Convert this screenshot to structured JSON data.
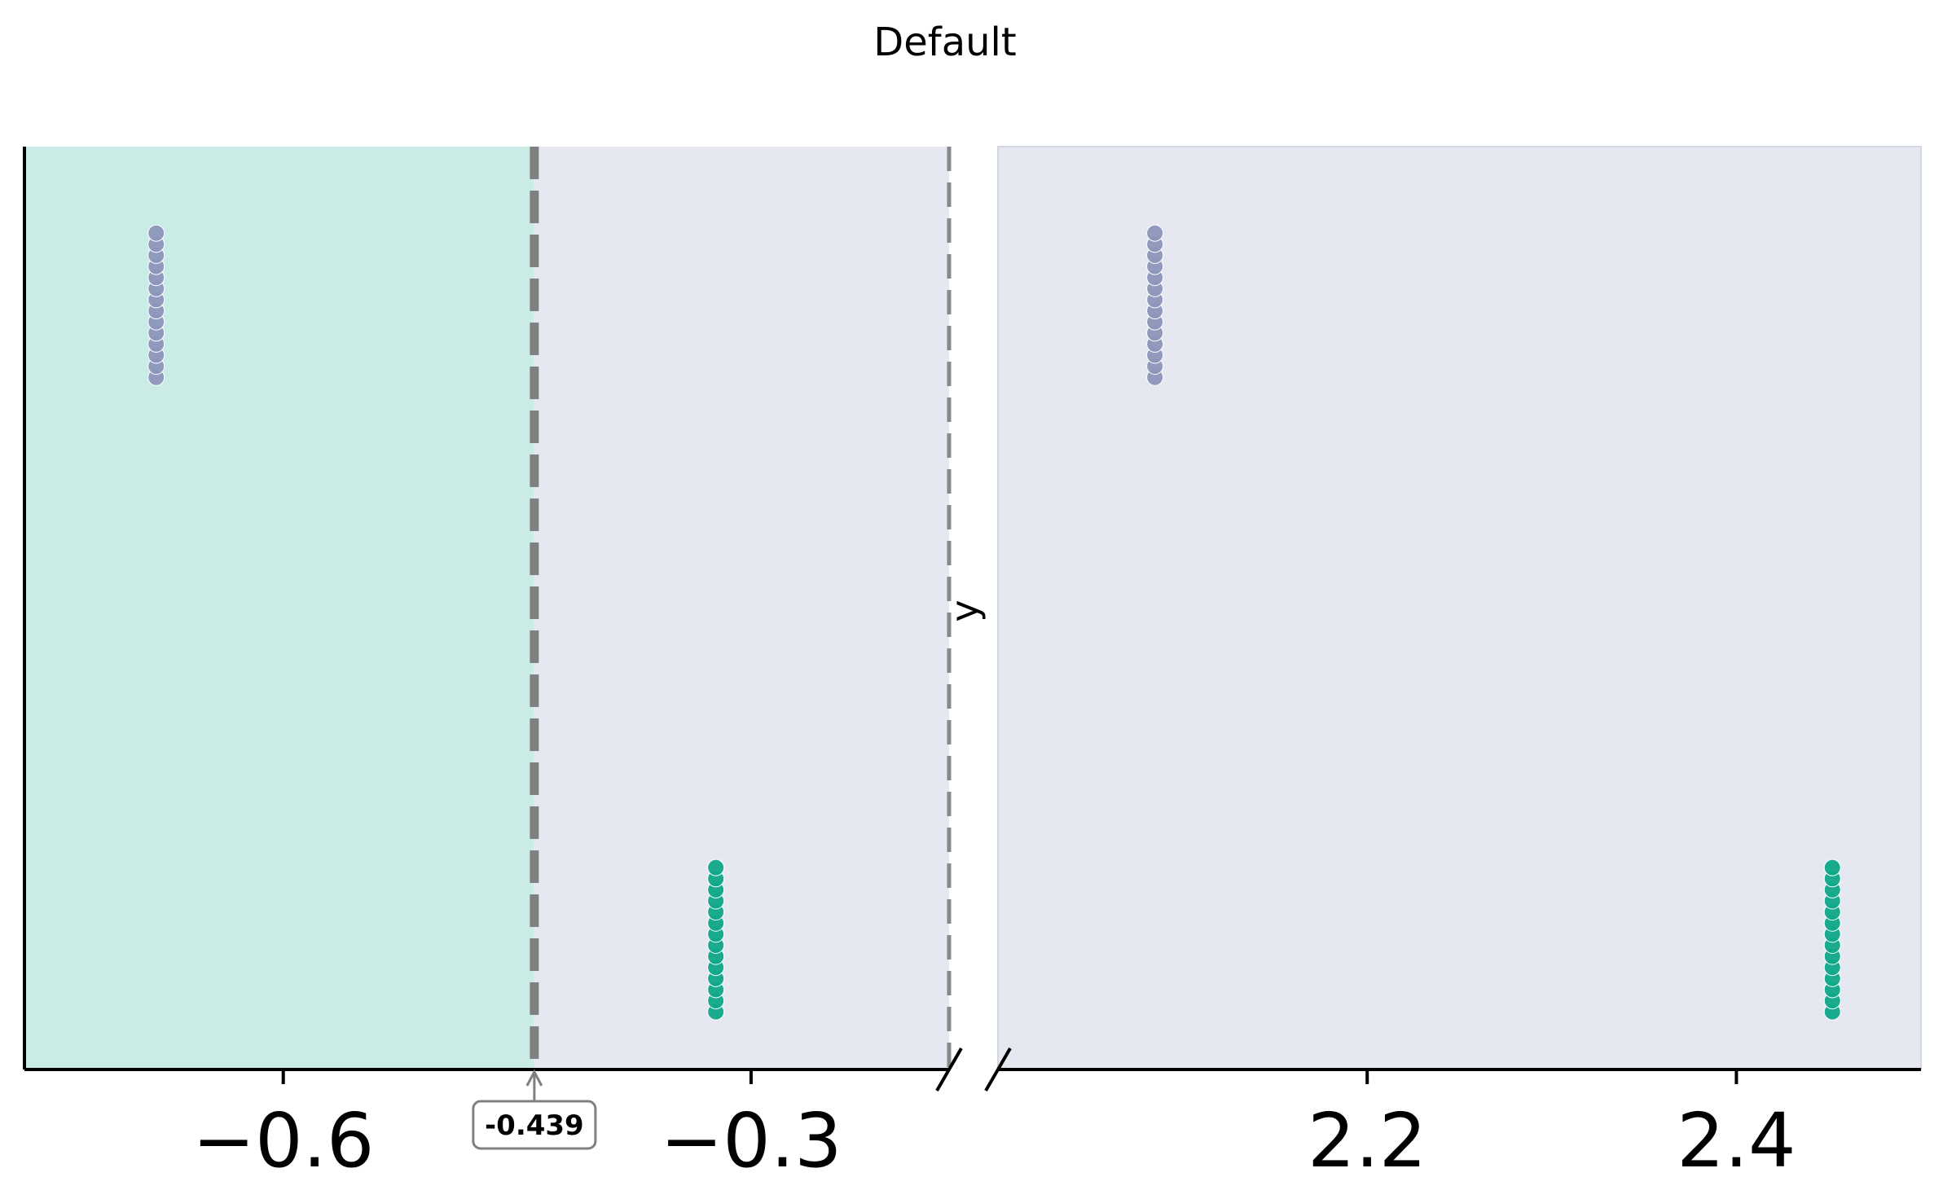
{
  "chart_data": {
    "type": "scatter",
    "title": "Default",
    "ylabel": "y",
    "xlabel": "",
    "broken_x_axis": true,
    "panels": [
      {
        "xlim": [
          -0.766,
          -0.173
        ],
        "xticks": [
          -0.6,
          -0.3
        ],
        "xtick_labels": [
          "−0.6",
          "−0.3"
        ]
      },
      {
        "xlim": [
          2.0,
          2.5
        ],
        "xticks": [
          2.2,
          2.4
        ],
        "xtick_labels": [
          "2.2",
          "2.4"
        ]
      }
    ],
    "ylim": [
      -0.3,
      1.3
    ],
    "series": [
      {
        "color": "#8c96b9",
        "x": [
          -0.6815,
          2.085
        ],
        "y_range": [
          0.9,
          1.15
        ]
      },
      {
        "color": "#0fa888",
        "x": [
          -0.3226,
          2.452
        ],
        "y_range": [
          -0.2,
          0.05
        ]
      }
    ],
    "threshold": {
      "value": -0.439,
      "label": "-0.439"
    },
    "regions": [
      {
        "from": -0.766,
        "to": -0.439,
        "color": "#cbece6"
      },
      {
        "from": -0.439,
        "to": -0.173,
        "color": "#e5e8f0"
      },
      {
        "from": 2.0,
        "to": 2.5,
        "color": "#e5e8f0"
      }
    ],
    "boundary_line": {
      "value": -0.173
    }
  }
}
